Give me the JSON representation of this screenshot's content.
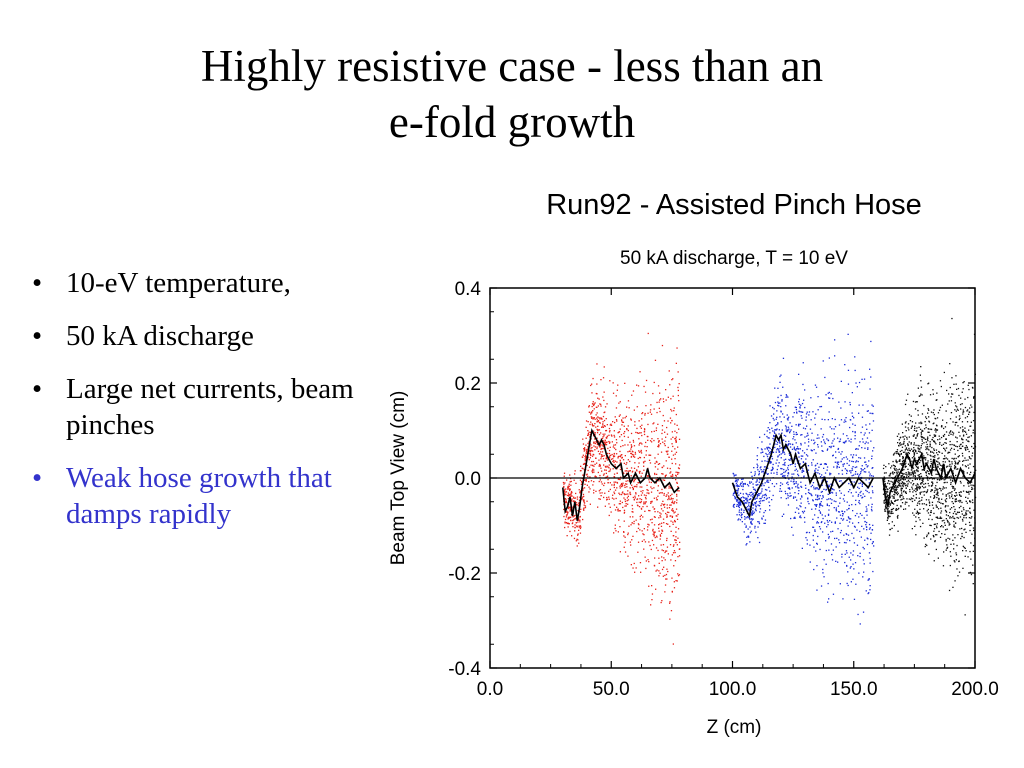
{
  "slide": {
    "title_line1": "Highly resistive case - less than an",
    "title_line2": "e-fold growth"
  },
  "bullets": [
    {
      "text": "10-eV temperature,",
      "color": "#000000"
    },
    {
      "text": "50 kA discharge",
      "color": "#000000"
    },
    {
      "text": "Large net currents, beam pinches",
      "color": "#000000"
    },
    {
      "text": "Weak hose growth that damps rapidly",
      "color": "#3333cc"
    }
  ],
  "chart_data": {
    "type": "scatter",
    "title": "Run92 - Assisted Pinch Hose",
    "subtitle": "50 kA discharge, T = 10 eV",
    "xlabel": "Z (cm)",
    "ylabel": "Beam Top View (cm)",
    "xlim": [
      0,
      200
    ],
    "ylim": [
      -0.4,
      0.4
    ],
    "xticks": [
      "0.0",
      "50.0",
      "100.0",
      "150.0",
      "200.0"
    ],
    "yticks": [
      "0.4",
      "0.2",
      "0.0",
      "-0.2",
      "-0.4"
    ],
    "zero_line": true,
    "series": [
      {
        "color": "#e8231b",
        "x_range": [
          30,
          78
        ],
        "centroid": [
          [
            30,
            -0.02
          ],
          [
            31,
            -0.07
          ],
          [
            32,
            -0.06
          ],
          [
            33,
            -0.04
          ],
          [
            34,
            -0.08
          ],
          [
            35,
            -0.05
          ],
          [
            36,
            -0.09
          ],
          [
            37,
            -0.06
          ],
          [
            38,
            -0.02
          ],
          [
            39,
            0.01
          ],
          [
            40,
            0.04
          ],
          [
            41,
            0.07
          ],
          [
            42,
            0.1
          ],
          [
            43,
            0.09
          ],
          [
            44,
            0.08
          ],
          [
            45,
            0.07
          ],
          [
            46,
            0.08
          ],
          [
            47,
            0.07
          ],
          [
            48,
            0.05
          ],
          [
            49,
            0.04
          ],
          [
            50,
            0.03
          ],
          [
            52,
            0.02
          ],
          [
            54,
            0.03
          ],
          [
            55,
            0.0
          ],
          [
            57,
            0.01
          ],
          [
            58,
            -0.01
          ],
          [
            60,
            0.01
          ],
          [
            62,
            -0.01
          ],
          [
            64,
            0.0
          ],
          [
            65,
            0.02
          ],
          [
            66,
            0.0
          ],
          [
            68,
            -0.01
          ],
          [
            70,
            0.0
          ],
          [
            72,
            -0.02
          ],
          [
            74,
            -0.01
          ],
          [
            76,
            -0.03
          ],
          [
            78,
            -0.02
          ]
        ]
      },
      {
        "color": "#1d2ed8",
        "x_range": [
          100,
          158
        ],
        "centroid": [
          [
            100,
            -0.01
          ],
          [
            102,
            -0.04
          ],
          [
            104,
            -0.05
          ],
          [
            106,
            -0.07
          ],
          [
            107,
            -0.08
          ],
          [
            108,
            -0.05
          ],
          [
            110,
            -0.03
          ],
          [
            112,
            -0.01
          ],
          [
            114,
            0.02
          ],
          [
            116,
            0.05
          ],
          [
            117,
            0.07
          ],
          [
            118,
            0.09
          ],
          [
            119,
            0.08
          ],
          [
            120,
            0.09
          ],
          [
            121,
            0.06
          ],
          [
            122,
            0.07
          ],
          [
            124,
            0.05
          ],
          [
            125,
            0.03
          ],
          [
            126,
            0.05
          ],
          [
            128,
            0.02
          ],
          [
            130,
            0.03
          ],
          [
            132,
            -0.01
          ],
          [
            134,
            0.01
          ],
          [
            136,
            -0.02
          ],
          [
            138,
            0.0
          ],
          [
            140,
            -0.03
          ],
          [
            142,
            0.0
          ],
          [
            144,
            -0.02
          ],
          [
            146,
            -0.01
          ],
          [
            148,
            0.0
          ],
          [
            150,
            -0.02
          ],
          [
            152,
            0.0
          ],
          [
            154,
            -0.01
          ],
          [
            156,
            -0.02
          ],
          [
            158,
            0.0
          ]
        ]
      },
      {
        "color": "#111111",
        "x_range": [
          162,
          200
        ],
        "centroid": [
          [
            162,
            0.0
          ],
          [
            163,
            -0.04
          ],
          [
            164,
            -0.06
          ],
          [
            165,
            -0.03
          ],
          [
            166,
            -0.02
          ],
          [
            168,
            0.0
          ],
          [
            170,
            0.02
          ],
          [
            172,
            0.05
          ],
          [
            173,
            0.04
          ],
          [
            174,
            0.02
          ],
          [
            175,
            0.04
          ],
          [
            176,
            0.03
          ],
          [
            178,
            0.05
          ],
          [
            179,
            0.02
          ],
          [
            180,
            0.03
          ],
          [
            182,
            0.01
          ],
          [
            183,
            0.04
          ],
          [
            184,
            0.02
          ],
          [
            186,
            0.0
          ],
          [
            187,
            0.03
          ],
          [
            188,
            0.0
          ],
          [
            190,
            0.02
          ],
          [
            192,
            -0.01
          ],
          [
            194,
            0.02
          ],
          [
            196,
            0.0
          ],
          [
            198,
            -0.01
          ],
          [
            200,
            0.01
          ]
        ]
      }
    ]
  }
}
